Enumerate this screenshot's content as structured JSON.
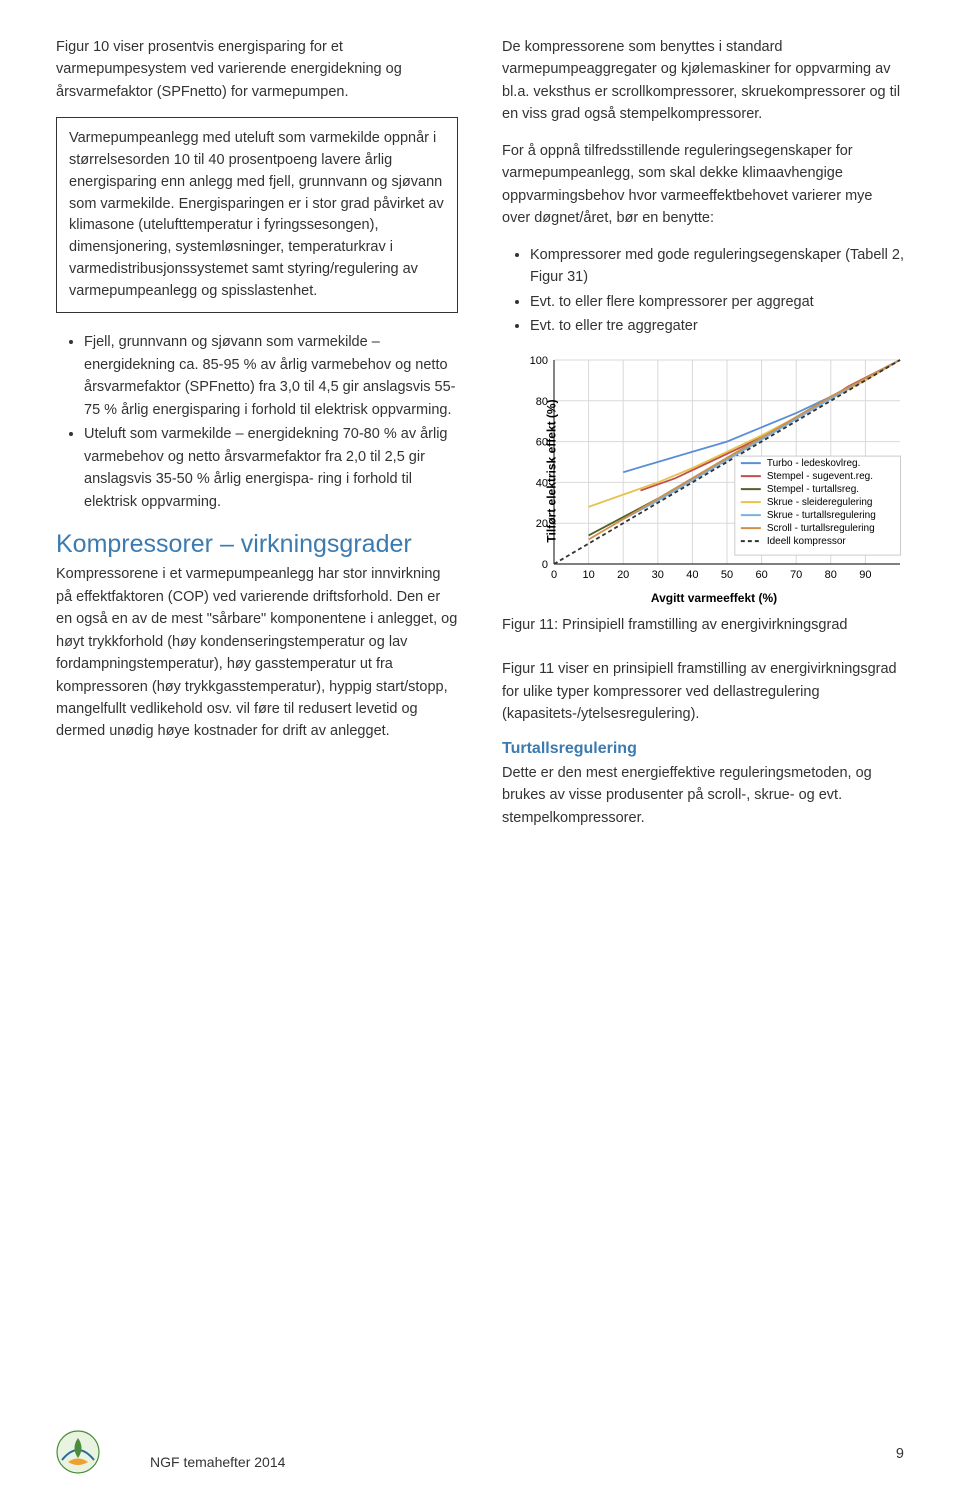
{
  "left": {
    "intro": "Figur 10 viser prosentvis energisparing for et varmepumpesystem ved varierende energidekning og årsvarmefaktor (SPFnetto) for varmepumpen.",
    "box": "Varmepumpeanlegg med uteluft som varmekilde oppnår i størrelsesorden 10 til 40 prosentpoeng lavere årlig energisparing enn anlegg med fjell, grunnvann og sjøvann som varmekilde. Energisparingen er i stor grad påvirket av klimasone (utelufttemperatur i fyringssesongen), dimensjonering, systemløsninger, temperaturkrav i varmedistribusjonssystemet samt styring/regulering av varmepumpeanlegg og spisslastenhet.",
    "bullets": [
      "Fjell, grunnvann og sjøvann som varmekilde – energidekning ca. 85-95 % av årlig varmebehov og netto årsvarmefaktor (SPFnetto) fra 3,0 til 4,5 gir anslagsvis 55-75 % årlig energisparing i forhold til elektrisk oppvarming.",
      "Uteluft som varmekilde – energidekning 70-80 % av årlig varmebehov og netto årsvarmefaktor fra 2,0 til 2,5 gir anslagsvis 35-50 % årlig energispa- ring i forhold til elektrisk oppvarming."
    ],
    "h2": "Kompressorer – virkningsgrader",
    "h2_color": "#3b7bb0",
    "p_after_h2": "Kompressorene i et varmepumpeanlegg har stor innvirkning på effektfaktoren (COP) ved varierende driftsforhold. Den er en også en av de mest \"sårbare\" komponentene i anlegget, og høyt trykkforhold (høy kondenseringstemperatur og lav fordampningstemperatur), høy gasstemperatur ut fra kompressoren (høy trykkgasstemperatur), hyppig start/stopp, mangelfullt vedlikehold osv. vil føre til redusert levetid og dermed unødig høye kostnader for drift av anlegget."
  },
  "right": {
    "p1": "De kompressorene som benyttes i standard varmepumpeaggregater og kjølemaskiner for oppvarming av bl.a. veksthus er scrollkompressorer, skruekompressorer og til en viss grad også stempelkompressorer.",
    "p2": "For å oppnå tilfredsstillende reguleringsegenskaper for varmepumpeanlegg, som skal dekke klimaavhengige oppvarmingsbehov hvor varmeeffektbehovet varierer mye over døgnet/året, bør en benytte:",
    "bullets": [
      "Kompressorer med gode reguleringsegenskaper (Tabell 2, Figur 31)",
      "Evt. to eller flere kompressorer per aggregat",
      "Evt. to eller tre aggregater"
    ],
    "chart": {
      "ylabel": "Tilført elektrisk effekt (%)",
      "xlabel": "Avgitt varmeeffekt (%)",
      "xlim": [
        0,
        100
      ],
      "ylim": [
        0,
        100
      ],
      "xticks": [
        0,
        10,
        20,
        30,
        40,
        50,
        60,
        70,
        80,
        90
      ],
      "yticks": [
        0,
        20,
        40,
        60,
        80,
        100
      ],
      "grid_color": "#d9d9d9",
      "axis_color": "#333333",
      "tick_fontsize": 11,
      "label_fontsize": 12,
      "legend_fontsize": 10,
      "series": [
        {
          "name": "Turbo - ledeskovlreg.",
          "color": "#5a8fd6",
          "points": [
            [
              20,
              45
            ],
            [
              30,
              50
            ],
            [
              40,
              55
            ],
            [
              50,
              60
            ],
            [
              60,
              67
            ],
            [
              70,
              74
            ],
            [
              80,
              82
            ],
            [
              90,
              91
            ],
            [
              100,
              100
            ]
          ]
        },
        {
          "name": "Stempel - sugevent.reg.",
          "color": "#c0504d",
          "points": [
            [
              25,
              36
            ],
            [
              35,
              42
            ],
            [
              45,
              50
            ],
            [
              55,
              58
            ],
            [
              65,
              67
            ],
            [
              75,
              76
            ],
            [
              85,
              87
            ],
            [
              100,
              100
            ]
          ]
        },
        {
          "name": "Stempel - turtallsreg.",
          "color": "#4f6228",
          "points": [
            [
              10,
              14
            ],
            [
              20,
              23
            ],
            [
              30,
              32
            ],
            [
              40,
              42
            ],
            [
              50,
              52
            ],
            [
              60,
              62
            ],
            [
              70,
              72
            ],
            [
              80,
              82
            ],
            [
              90,
              91
            ],
            [
              100,
              100
            ]
          ]
        },
        {
          "name": "Skrue - sleideregulering",
          "color": "#e6c24e",
          "points": [
            [
              10,
              28
            ],
            [
              20,
              34
            ],
            [
              30,
              40
            ],
            [
              40,
              47
            ],
            [
              50,
              55
            ],
            [
              60,
              63
            ],
            [
              70,
              72
            ],
            [
              80,
              81
            ],
            [
              90,
              90
            ],
            [
              100,
              100
            ]
          ]
        },
        {
          "name": "Skrue - turtallsregulering",
          "color": "#7bb0e0",
          "points": [
            [
              20,
              22
            ],
            [
              30,
              31
            ],
            [
              40,
              41
            ],
            [
              50,
              51
            ],
            [
              60,
              61
            ],
            [
              70,
              71
            ],
            [
              80,
              81
            ],
            [
              90,
              91
            ],
            [
              100,
              100
            ]
          ]
        },
        {
          "name": "Scroll - turtallsregulering",
          "color": "#d19049",
          "points": [
            [
              10,
              12
            ],
            [
              20,
              22
            ],
            [
              30,
              32
            ],
            [
              40,
              42
            ],
            [
              50,
              52
            ],
            [
              60,
              62
            ],
            [
              70,
              72
            ],
            [
              80,
              82
            ],
            [
              90,
              91
            ],
            [
              100,
              100
            ]
          ]
        },
        {
          "name": "Ideell kompressor",
          "color": "#333333",
          "dash": "4,3",
          "points": [
            [
              0,
              0
            ],
            [
              100,
              100
            ]
          ]
        }
      ]
    },
    "caption": "Figur 11: Prinsipiell framstilling av energivirkningsgrad",
    "p3": "Figur 11 viser en prinsipiell framstilling av energivirkningsgrad for ulike typer kompressorer ved dellastregulering (kapasitets-/ytelsesregulering).",
    "h3": "Turtallsregulering",
    "h3_color": "#3b7bb0",
    "p4": "Dette er den mest energieffektive reguleringsmetoden, og brukes av visse produsenter på scroll-, skrue- og evt. stempelkompressorer."
  },
  "footer": {
    "text": "NGF temahefter 2014",
    "page": "9"
  }
}
